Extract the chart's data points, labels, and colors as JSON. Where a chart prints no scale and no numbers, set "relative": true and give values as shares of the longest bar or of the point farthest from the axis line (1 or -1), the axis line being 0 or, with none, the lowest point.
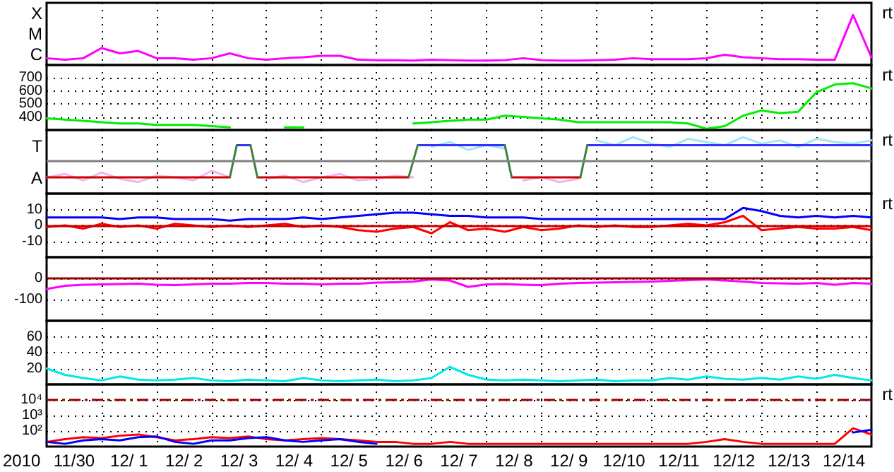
{
  "chart_data": [
    {
      "type": "line",
      "relative": true,
      "xlim": [
        "2010-11-30",
        "2010-12-15"
      ],
      "grid": "x",
      "tick_labels": "y",
      "annotations": [
        "rt",
        "X",
        "M",
        "C"
      ],
      "xticks": [
        {
          "value": "2010-12-01",
          "label": null
        },
        {
          "value": "2010-12-02",
          "label": null
        },
        {
          "value": "2010-12-03",
          "label": null
        },
        {
          "value": "2010-12-04",
          "label": null
        },
        {
          "value": "2010-12-05",
          "label": null
        },
        {
          "value": "2010-12-06",
          "label": null
        },
        {
          "value": "2010-12-07",
          "label": null
        },
        {
          "value": "2010-12-08",
          "label": null
        },
        {
          "value": "2010-12-09",
          "label": null
        },
        {
          "value": "2010-12-10",
          "label": null
        },
        {
          "value": "2010-12-11",
          "label": null
        },
        {
          "value": "2010-12-12",
          "label": null
        },
        {
          "value": "2010-12-13",
          "label": null
        },
        {
          "value": "2010-12-14",
          "label": null
        }
      ],
      "x": [
        "2010-11-30T00:00",
        "2010-11-30T08:00",
        "2010-11-30T16:00",
        "2010-12-01T00:00",
        "2010-12-01T08:00",
        "2010-12-01T16:00",
        "2010-12-02T00:00",
        "2010-12-02T08:00",
        "2010-12-02T16:00",
        "2010-12-03T00:00",
        "2010-12-03T08:00",
        "2010-12-03T16:00",
        "2010-12-04T00:00",
        "2010-12-04T08:00",
        "2010-12-04T16:00",
        "2010-12-05T00:00",
        "2010-12-05T08:00",
        "2010-12-05T16:00",
        "2010-12-06T00:00",
        "2010-12-06T08:00",
        "2010-12-06T16:00",
        "2010-12-07T00:00",
        "2010-12-07T08:00",
        "2010-12-07T16:00",
        "2010-12-08T00:00",
        "2010-12-08T08:00",
        "2010-12-08T16:00",
        "2010-12-09T00:00",
        "2010-12-09T08:00",
        "2010-12-09T16:00",
        "2010-12-10T00:00",
        "2010-12-10T08:00",
        "2010-12-10T16:00",
        "2010-12-11T00:00",
        "2010-12-11T08:00",
        "2010-12-11T16:00",
        "2010-12-12T00:00",
        "2010-12-12T08:00",
        "2010-12-12T16:00",
        "2010-12-13T00:00",
        "2010-12-13T08:00",
        "2010-12-13T16:00",
        "2010-12-14T00:00",
        "2010-12-14T08:00",
        "2010-12-14T16:00",
        "2010-12-15T00:00"
      ],
      "series": [
        {
          "color": "#ff00ff",
          "values": [
            0.11,
            0.08,
            0.11,
            0.32,
            0.21,
            0.26,
            0.11,
            0.11,
            0.08,
            0.11,
            0.21,
            0.11,
            0.08,
            0.11,
            0.13,
            0.16,
            0.16,
            0.08,
            0.07,
            0.07,
            0.06,
            0.08,
            0.07,
            0.06,
            0.06,
            0.07,
            0.11,
            0.07,
            0.06,
            0.06,
            0.07,
            0.08,
            0.11,
            0.09,
            0.09,
            0.09,
            0.11,
            0.18,
            0.13,
            0.11,
            0.09,
            0.09,
            0.08,
            0.08,
            1,
            0.13
          ]
        }
      ]
    },
    {
      "type": "line",
      "xlim": [
        "2010-11-30",
        "2010-12-15"
      ],
      "ylim": [
        300,
        800
      ],
      "yticks": [
        400,
        500,
        600,
        700
      ],
      "grid": true,
      "tick_labels": "y",
      "annotations": [
        "rt"
      ],
      "xticks": [
        {
          "value": "2010-12-01",
          "label": null
        },
        {
          "value": "2010-12-02",
          "label": null
        },
        {
          "value": "2010-12-03",
          "label": null
        },
        {
          "value": "2010-12-04",
          "label": null
        },
        {
          "value": "2010-12-05",
          "label": null
        },
        {
          "value": "2010-12-06",
          "label": null
        },
        {
          "value": "2010-12-07",
          "label": null
        },
        {
          "value": "2010-12-08",
          "label": null
        },
        {
          "value": "2010-12-09",
          "label": null
        },
        {
          "value": "2010-12-10",
          "label": null
        },
        {
          "value": "2010-12-11",
          "label": null
        },
        {
          "value": "2010-12-12",
          "label": null
        },
        {
          "value": "2010-12-13",
          "label": null
        },
        {
          "value": "2010-12-14",
          "label": null
        }
      ],
      "x": [
        "2010-11-30T00:00",
        "2010-11-30T08:00",
        "2010-11-30T16:00",
        "2010-12-01T00:00",
        "2010-12-01T08:00",
        "2010-12-01T16:00",
        "2010-12-02T00:00",
        "2010-12-02T08:00",
        "2010-12-02T16:00",
        "2010-12-03T00:00",
        "2010-12-03T08:00",
        "2010-12-03T16:00",
        "2010-12-04T00:00",
        "2010-12-04T08:00",
        "2010-12-04T16:00",
        "2010-12-05T00:00",
        "2010-12-05T08:00",
        "2010-12-05T16:00",
        "2010-12-06T00:00",
        "2010-12-06T08:00",
        "2010-12-06T16:00",
        "2010-12-07T00:00",
        "2010-12-07T08:00",
        "2010-12-07T16:00",
        "2010-12-08T00:00",
        "2010-12-08T08:00",
        "2010-12-08T16:00",
        "2010-12-09T00:00",
        "2010-12-09T08:00",
        "2010-12-09T16:00",
        "2010-12-10T00:00",
        "2010-12-10T08:00",
        "2010-12-10T16:00",
        "2010-12-11T00:00",
        "2010-12-11T08:00",
        "2010-12-11T16:00",
        "2010-12-12T00:00",
        "2010-12-12T08:00",
        "2010-12-12T16:00",
        "2010-12-13T00:00",
        "2010-12-13T08:00",
        "2010-12-13T16:00",
        "2010-12-14T00:00",
        "2010-12-14T08:00",
        "2010-12-14T16:00",
        "2010-12-15T00:00"
      ],
      "series": [
        {
          "color": "#00ee00",
          "values": [
            390,
            380,
            370,
            360,
            350,
            350,
            340,
            340,
            340,
            330,
            320,
            null,
            null,
            320,
            320,
            null,
            null,
            null,
            null,
            null,
            350,
            360,
            370,
            380,
            380,
            410,
            400,
            390,
            380,
            360,
            360,
            360,
            360,
            360,
            360,
            350,
            310,
            330,
            410,
            450,
            430,
            440,
            590,
            650,
            660,
            620
          ]
        }
      ]
    },
    {
      "type": "line",
      "relative": true,
      "xlim": [
        "2010-11-30",
        "2010-12-15"
      ],
      "grid": "x",
      "tick_labels": "y",
      "annotations": [
        "rt",
        "T",
        "A"
      ],
      "ref_lines": [
        {
          "axis": "y",
          "value": 0,
          "color": "#808080"
        }
      ],
      "xticks": [
        {
          "value": "2010-12-01",
          "label": null
        },
        {
          "value": "2010-12-02",
          "label": null
        },
        {
          "value": "2010-12-03",
          "label": null
        },
        {
          "value": "2010-12-04",
          "label": null
        },
        {
          "value": "2010-12-05",
          "label": null
        },
        {
          "value": "2010-12-06",
          "label": null
        },
        {
          "value": "2010-12-07",
          "label": null
        },
        {
          "value": "2010-12-08",
          "label": null
        },
        {
          "value": "2010-12-09",
          "label": null
        },
        {
          "value": "2010-12-10",
          "label": null
        },
        {
          "value": "2010-12-11",
          "label": null
        },
        {
          "value": "2010-12-12",
          "label": null
        },
        {
          "value": "2010-12-13",
          "label": null
        },
        {
          "value": "2010-12-14",
          "label": null
        }
      ],
      "x": [
        "2010-11-30T00:00",
        "2010-11-30T08:00",
        "2010-11-30T16:00",
        "2010-12-01T00:00",
        "2010-12-01T08:00",
        "2010-12-01T16:00",
        "2010-12-02T00:00",
        "2010-12-02T08:00",
        "2010-12-02T16:00",
        "2010-12-03T00:00",
        "2010-12-03T08:00",
        "2010-12-03T16:00",
        "2010-12-04T00:00",
        "2010-12-04T08:00",
        "2010-12-04T16:00",
        "2010-12-05T00:00",
        "2010-12-05T08:00",
        "2010-12-05T16:00",
        "2010-12-06T00:00",
        "2010-12-06T08:00",
        "2010-12-06T16:00",
        "2010-12-07T00:00",
        "2010-12-07T08:00",
        "2010-12-07T16:00",
        "2010-12-08T00:00",
        "2010-12-08T08:00",
        "2010-12-08T16:00",
        "2010-12-09T00:00",
        "2010-12-09T08:00",
        "2010-12-09T16:00",
        "2010-12-10T00:00",
        "2010-12-10T08:00",
        "2010-12-10T16:00",
        "2010-12-11T00:00",
        "2010-12-11T08:00",
        "2010-12-11T16:00",
        "2010-12-12T00:00",
        "2010-12-12T08:00",
        "2010-12-12T16:00",
        "2010-12-13T00:00",
        "2010-12-13T08:00",
        "2010-12-13T16:00",
        "2010-12-14T00:00",
        "2010-12-14T08:00",
        "2010-12-14T16:00",
        "2010-12-15T00:00"
      ],
      "series": [
        {
          "color": "#f4b4f0",
          "values": [
            -0.67,
            -0.53,
            -0.8,
            -0.47,
            -0.73,
            -0.87,
            -0.6,
            -0.67,
            -0.8,
            -0.4,
            -0.67,
            null,
            -0.73,
            -0.6,
            -0.87,
            -0.67,
            -0.53,
            -0.8,
            -0.73,
            -0.6,
            -0.67,
            null,
            null,
            null,
            null,
            null,
            -0.8,
            -0.67,
            -0.87,
            -0.73,
            null,
            null,
            null,
            null,
            null,
            null,
            null,
            null,
            null,
            null,
            null,
            null,
            null,
            null,
            null,
            null
          ]
        },
        {
          "color": "#a0e4f8",
          "values": [
            null,
            null,
            null,
            null,
            null,
            null,
            null,
            null,
            null,
            null,
            null,
            null,
            null,
            null,
            null,
            null,
            null,
            null,
            null,
            null,
            null,
            0.6,
            0.8,
            0.47,
            0.67,
            0.53,
            null,
            null,
            null,
            null,
            0.87,
            0.67,
            1.0,
            0.73,
            0.6,
            0.93,
            0.8,
            0.67,
            1.0,
            0.73,
            0.87,
            0.6,
            0.93,
            0.8,
            0.73,
            0.87
          ]
        },
        {
          "color": "#cc0000",
          "x": [
            "2010-11-30T00:00",
            "2010-12-03T08:00",
            "2010-12-03T09:00",
            "2010-12-03T20:00",
            "2010-12-06T14:00",
            "2010-12-06T15:00",
            "2010-12-08T11:00",
            "2010-12-09T17:00"
          ],
          "values": [
            -0.67,
            -0.67,
            null,
            -0.67,
            -0.67,
            null,
            -0.67,
            -0.67
          ]
        },
        {
          "color": "#3333ff",
          "x": [
            "2010-12-03T11:00",
            "2010-12-03T17:00",
            "2010-12-03T18:00",
            "2010-12-06T18:00",
            "2010-12-08T08:00",
            "2010-12-08T09:00",
            "2010-12-09T20:00",
            "2010-12-15T00:00"
          ],
          "values": [
            0.67,
            0.67,
            null,
            0.67,
            0.67,
            null,
            0.67,
            0.67
          ]
        },
        {
          "color": "#408040",
          "x": [
            "2010-12-03T08:00",
            "2010-12-03T11:00",
            "2010-12-03T12:00",
            "2010-12-03T17:00",
            "2010-12-03T20:00",
            "2010-12-03T21:00",
            "2010-12-06T14:00",
            "2010-12-06T18:00",
            "2010-12-06T19:00",
            "2010-12-08T08:00",
            "2010-12-08T11:00",
            "2010-12-08T12:00",
            "2010-12-09T17:00",
            "2010-12-09T20:00"
          ],
          "values": [
            -0.67,
            0.67,
            null,
            0.67,
            -0.67,
            null,
            -0.67,
            0.67,
            null,
            0.67,
            -0.67,
            null,
            -0.67,
            0.67
          ]
        }
      ]
    },
    {
      "type": "line",
      "xlim": [
        "2010-11-30",
        "2010-12-15"
      ],
      "ylim": [
        -20,
        20
      ],
      "yticks": [
        -10,
        0,
        10
      ],
      "grid": true,
      "tick_labels": "y",
      "annotations": [
        "rt"
      ],
      "ref_lines": [
        {
          "axis": "y",
          "value": 0,
          "color": "#cc0000"
        }
      ],
      "xticks": [
        {
          "value": "2010-12-01",
          "label": null
        },
        {
          "value": "2010-12-02",
          "label": null
        },
        {
          "value": "2010-12-03",
          "label": null
        },
        {
          "value": "2010-12-04",
          "label": null
        },
        {
          "value": "2010-12-05",
          "label": null
        },
        {
          "value": "2010-12-06",
          "label": null
        },
        {
          "value": "2010-12-07",
          "label": null
        },
        {
          "value": "2010-12-08",
          "label": null
        },
        {
          "value": "2010-12-09",
          "label": null
        },
        {
          "value": "2010-12-10",
          "label": null
        },
        {
          "value": "2010-12-11",
          "label": null
        },
        {
          "value": "2010-12-12",
          "label": null
        },
        {
          "value": "2010-12-13",
          "label": null
        },
        {
          "value": "2010-12-14",
          "label": null
        }
      ],
      "x": [
        "2010-11-30T00:00",
        "2010-11-30T08:00",
        "2010-11-30T16:00",
        "2010-12-01T00:00",
        "2010-12-01T08:00",
        "2010-12-01T16:00",
        "2010-12-02T00:00",
        "2010-12-02T08:00",
        "2010-12-02T16:00",
        "2010-12-03T00:00",
        "2010-12-03T08:00",
        "2010-12-03T16:00",
        "2010-12-04T00:00",
        "2010-12-04T08:00",
        "2010-12-04T16:00",
        "2010-12-05T00:00",
        "2010-12-05T08:00",
        "2010-12-05T16:00",
        "2010-12-06T00:00",
        "2010-12-06T08:00",
        "2010-12-06T16:00",
        "2010-12-07T00:00",
        "2010-12-07T08:00",
        "2010-12-07T16:00",
        "2010-12-08T00:00",
        "2010-12-08T08:00",
        "2010-12-08T16:00",
        "2010-12-09T00:00",
        "2010-12-09T08:00",
        "2010-12-09T16:00",
        "2010-12-10T00:00",
        "2010-12-10T08:00",
        "2010-12-10T16:00",
        "2010-12-11T00:00",
        "2010-12-11T08:00",
        "2010-12-11T16:00",
        "2010-12-12T00:00",
        "2010-12-12T08:00",
        "2010-12-12T16:00",
        "2010-12-13T00:00",
        "2010-12-13T08:00",
        "2010-12-13T16:00",
        "2010-12-14T00:00",
        "2010-12-14T08:00",
        "2010-12-14T16:00",
        "2010-12-15T00:00"
      ],
      "series": [
        {
          "color": "#0000ff",
          "values": [
            5,
            5,
            5,
            5,
            4,
            5,
            5,
            4,
            4,
            4,
            3,
            4,
            4,
            4,
            5,
            4,
            5,
            6,
            7,
            8,
            8,
            7,
            6,
            6,
            5,
            5,
            5,
            4,
            4,
            4,
            4,
            4,
            4,
            4,
            4,
            4,
            4,
            4,
            11,
            9,
            6,
            5,
            6,
            5,
            6,
            5
          ]
        },
        {
          "color": "#ff0000",
          "values": [
            -1,
            0,
            -2,
            1,
            -1,
            0,
            -2,
            1,
            0,
            -1,
            0,
            -1,
            0,
            1,
            -1,
            0,
            -1,
            -3,
            -4,
            -2,
            -1,
            -5,
            2,
            -3,
            -2,
            -4,
            -1,
            -3,
            -2,
            0,
            -1,
            0,
            -1,
            -1,
            0,
            1,
            0,
            2,
            6,
            -3,
            -2,
            -1,
            -2,
            -2,
            -1,
            -3
          ]
        }
      ]
    },
    {
      "type": "line",
      "xlim": [
        "2010-11-30",
        "2010-12-15"
      ],
      "ylim": [
        -200,
        100
      ],
      "yticks": [
        -100,
        0
      ],
      "grid": true,
      "tick_labels": "y",
      "ref_lines": [
        {
          "axis": "y",
          "value": 0,
          "color": "#990000"
        }
      ],
      "xticks": [
        {
          "value": "2010-12-01",
          "label": null
        },
        {
          "value": "2010-12-02",
          "label": null
        },
        {
          "value": "2010-12-03",
          "label": null
        },
        {
          "value": "2010-12-04",
          "label": null
        },
        {
          "value": "2010-12-05",
          "label": null
        },
        {
          "value": "2010-12-06",
          "label": null
        },
        {
          "value": "2010-12-07",
          "label": null
        },
        {
          "value": "2010-12-08",
          "label": null
        },
        {
          "value": "2010-12-09",
          "label": null
        },
        {
          "value": "2010-12-10",
          "label": null
        },
        {
          "value": "2010-12-11",
          "label": null
        },
        {
          "value": "2010-12-12",
          "label": null
        },
        {
          "value": "2010-12-13",
          "label": null
        },
        {
          "value": "2010-12-14",
          "label": null
        }
      ],
      "x": [
        "2010-11-30T00:00",
        "2010-11-30T08:00",
        "2010-11-30T16:00",
        "2010-12-01T00:00",
        "2010-12-01T08:00",
        "2010-12-01T16:00",
        "2010-12-02T00:00",
        "2010-12-02T08:00",
        "2010-12-02T16:00",
        "2010-12-03T00:00",
        "2010-12-03T08:00",
        "2010-12-03T16:00",
        "2010-12-04T00:00",
        "2010-12-04T08:00",
        "2010-12-04T16:00",
        "2010-12-05T00:00",
        "2010-12-05T08:00",
        "2010-12-05T16:00",
        "2010-12-06T00:00",
        "2010-12-06T08:00",
        "2010-12-06T16:00",
        "2010-12-07T00:00",
        "2010-12-07T08:00",
        "2010-12-07T16:00",
        "2010-12-08T00:00",
        "2010-12-08T08:00",
        "2010-12-08T16:00",
        "2010-12-09T00:00",
        "2010-12-09T08:00",
        "2010-12-09T16:00",
        "2010-12-10T00:00",
        "2010-12-10T08:00",
        "2010-12-10T16:00",
        "2010-12-11T00:00",
        "2010-12-11T08:00",
        "2010-12-11T16:00",
        "2010-12-12T00:00",
        "2010-12-12T08:00",
        "2010-12-12T16:00",
        "2010-12-13T00:00",
        "2010-12-13T08:00",
        "2010-12-13T16:00",
        "2010-12-14T00:00",
        "2010-12-14T08:00",
        "2010-12-14T16:00",
        "2010-12-15T00:00"
      ],
      "series": [
        {
          "color": "#ff00ff",
          "values": [
            -50,
            -35,
            -30,
            -28,
            -27,
            -25,
            -30,
            -32,
            -28,
            -25,
            -25,
            -22,
            -22,
            -25,
            -25,
            -28,
            -25,
            -25,
            -20,
            -18,
            -15,
            -5,
            -10,
            -40,
            -28,
            -27,
            -30,
            -32,
            -25,
            -22,
            -20,
            -18,
            -17,
            -15,
            -12,
            -8,
            -5,
            -10,
            -15,
            -22,
            -23,
            -25,
            -22,
            -30,
            -22,
            -25
          ]
        }
      ]
    },
    {
      "type": "line",
      "xlim": [
        "2010-11-30",
        "2010-12-15"
      ],
      "ylim": [
        0,
        80
      ],
      "yticks": [
        20,
        40,
        60
      ],
      "grid": true,
      "tick_labels": "y",
      "xticks": [
        {
          "value": "2010-12-01",
          "label": null
        },
        {
          "value": "2010-12-02",
          "label": null
        },
        {
          "value": "2010-12-03",
          "label": null
        },
        {
          "value": "2010-12-04",
          "label": null
        },
        {
          "value": "2010-12-05",
          "label": null
        },
        {
          "value": "2010-12-06",
          "label": null
        },
        {
          "value": "2010-12-07",
          "label": null
        },
        {
          "value": "2010-12-08",
          "label": null
        },
        {
          "value": "2010-12-09",
          "label": null
        },
        {
          "value": "2010-12-10",
          "label": null
        },
        {
          "value": "2010-12-11",
          "label": null
        },
        {
          "value": "2010-12-12",
          "label": null
        },
        {
          "value": "2010-12-13",
          "label": null
        },
        {
          "value": "2010-12-14",
          "label": null
        }
      ],
      "x": [
        "2010-11-30T00:00",
        "2010-11-30T08:00",
        "2010-11-30T16:00",
        "2010-12-01T00:00",
        "2010-12-01T08:00",
        "2010-12-01T16:00",
        "2010-12-02T00:00",
        "2010-12-02T08:00",
        "2010-12-02T16:00",
        "2010-12-03T00:00",
        "2010-12-03T08:00",
        "2010-12-03T16:00",
        "2010-12-04T00:00",
        "2010-12-04T08:00",
        "2010-12-04T16:00",
        "2010-12-05T00:00",
        "2010-12-05T08:00",
        "2010-12-05T16:00",
        "2010-12-06T00:00",
        "2010-12-06T08:00",
        "2010-12-06T16:00",
        "2010-12-07T00:00",
        "2010-12-07T08:00",
        "2010-12-07T16:00",
        "2010-12-08T00:00",
        "2010-12-08T08:00",
        "2010-12-08T16:00",
        "2010-12-09T00:00",
        "2010-12-09T08:00",
        "2010-12-09T16:00",
        "2010-12-10T00:00",
        "2010-12-10T08:00",
        "2010-12-10T16:00",
        "2010-12-11T00:00",
        "2010-12-11T08:00",
        "2010-12-11T16:00",
        "2010-12-12T00:00",
        "2010-12-12T08:00",
        "2010-12-12T16:00",
        "2010-12-13T00:00",
        "2010-12-13T08:00",
        "2010-12-13T16:00",
        "2010-12-14T00:00",
        "2010-12-14T08:00",
        "2010-12-14T16:00",
        "2010-12-15T00:00"
      ],
      "series": [
        {
          "color": "#00e8e8",
          "values": [
            20,
            12,
            8,
            5,
            10,
            6,
            5,
            6,
            8,
            5,
            4,
            6,
            5,
            4,
            8,
            5,
            4,
            5,
            6,
            4,
            5,
            8,
            22,
            12,
            6,
            5,
            6,
            5,
            4,
            5,
            6,
            4,
            5,
            5,
            8,
            6,
            10,
            7,
            6,
            8,
            6,
            10,
            7,
            12,
            8,
            5
          ]
        }
      ]
    },
    {
      "type": "line",
      "xlim": [
        "2010-11-30",
        "2010-12-15"
      ],
      "ylim": [
        10,
        100000
      ],
      "log": "y",
      "grid": true,
      "xlabel": "2010",
      "annotations": [
        "rt"
      ],
      "yticks": [
        {
          "value": 100,
          "label": "10²"
        },
        {
          "value": 1000,
          "label": "10³"
        },
        {
          "value": 10000,
          "label": "10⁴"
        }
      ],
      "ref_lines": [
        {
          "axis": "y",
          "value": 10000,
          "color": "#990000",
          "line_style": "dashed"
        }
      ],
      "xticks": [
        {
          "value": "2010-11-30T12:00",
          "label": "11/30"
        },
        {
          "value": "2010-12-01",
          "label": null
        },
        {
          "value": "2010-12-01T12:00",
          "label": "12/ 1"
        },
        {
          "value": "2010-12-02",
          "label": null
        },
        {
          "value": "2010-12-02T12:00",
          "label": "12/ 2"
        },
        {
          "value": "2010-12-03",
          "label": null
        },
        {
          "value": "2010-12-03T12:00",
          "label": "12/ 3"
        },
        {
          "value": "2010-12-04",
          "label": null
        },
        {
          "value": "2010-12-04T12:00",
          "label": "12/ 4"
        },
        {
          "value": "2010-12-05",
          "label": null
        },
        {
          "value": "2010-12-05T12:00",
          "label": "12/ 5"
        },
        {
          "value": "2010-12-06",
          "label": null
        },
        {
          "value": "2010-12-06T12:00",
          "label": "12/ 6"
        },
        {
          "value": "2010-12-07",
          "label": null
        },
        {
          "value": "2010-12-07T12:00",
          "label": "12/ 7"
        },
        {
          "value": "2010-12-08",
          "label": null
        },
        {
          "value": "2010-12-08T12:00",
          "label": "12/ 8"
        },
        {
          "value": "2010-12-09",
          "label": null
        },
        {
          "value": "2010-12-09T12:00",
          "label": "12/ 9"
        },
        {
          "value": "2010-12-10",
          "label": null
        },
        {
          "value": "2010-12-10T12:00",
          "label": "12/10"
        },
        {
          "value": "2010-12-11",
          "label": null
        },
        {
          "value": "2010-12-11T12:00",
          "label": "12/11"
        },
        {
          "value": "2010-12-12",
          "label": null
        },
        {
          "value": "2010-12-12T12:00",
          "label": "12/12"
        },
        {
          "value": "2010-12-13",
          "label": null
        },
        {
          "value": "2010-12-13T12:00",
          "label": "12/13"
        },
        {
          "value": "2010-12-14",
          "label": null
        },
        {
          "value": "2010-12-14T12:00",
          "label": "12/14"
        }
      ],
      "x": [
        "2010-11-30T00:00",
        "2010-11-30T08:00",
        "2010-11-30T16:00",
        "2010-12-01T00:00",
        "2010-12-01T08:00",
        "2010-12-01T16:00",
        "2010-12-02T00:00",
        "2010-12-02T08:00",
        "2010-12-02T16:00",
        "2010-12-03T00:00",
        "2010-12-03T08:00",
        "2010-12-03T16:00",
        "2010-12-04T00:00",
        "2010-12-04T08:00",
        "2010-12-04T16:00",
        "2010-12-05T00:00",
        "2010-12-05T08:00",
        "2010-12-05T16:00",
        "2010-12-06T00:00",
        "2010-12-06T08:00",
        "2010-12-06T16:00",
        "2010-12-07T00:00",
        "2010-12-07T08:00",
        "2010-12-07T16:00",
        "2010-12-08T00:00",
        "2010-12-08T08:00",
        "2010-12-08T16:00",
        "2010-12-09T00:00",
        "2010-12-09T08:00",
        "2010-12-09T16:00",
        "2010-12-10T00:00",
        "2010-12-10T08:00",
        "2010-12-10T16:00",
        "2010-12-11T00:00",
        "2010-12-11T08:00",
        "2010-12-11T16:00",
        "2010-12-12T00:00",
        "2010-12-12T08:00",
        "2010-12-12T16:00",
        "2010-12-13T00:00",
        "2010-12-13T08:00",
        "2010-12-13T16:00",
        "2010-12-14T00:00",
        "2010-12-14T08:00",
        "2010-12-14T16:00",
        "2010-12-15T00:00"
      ],
      "series": [
        {
          "color": "#ff0000",
          "values": [
            20,
            30,
            40,
            35,
            50,
            60,
            40,
            25,
            30,
            40,
            35,
            45,
            30,
            25,
            30,
            35,
            30,
            25,
            20,
            20,
            15,
            15,
            20,
            15,
            15,
            15,
            15,
            15,
            15,
            15,
            15,
            15,
            15,
            15,
            15,
            15,
            20,
            30,
            20,
            15,
            15,
            15,
            15,
            15,
            150,
            60
          ]
        },
        {
          "color": "#0000ff",
          "values": [
            20,
            15,
            25,
            30,
            25,
            40,
            45,
            20,
            15,
            25,
            25,
            35,
            40,
            25,
            20,
            25,
            30,
            20,
            15,
            null,
            null,
            null,
            null,
            null,
            null,
            null,
            null,
            null,
            null,
            null,
            null,
            null,
            null,
            null,
            null,
            null,
            null,
            null,
            null,
            null,
            null,
            null,
            null,
            null,
            80,
            120
          ]
        }
      ]
    }
  ]
}
